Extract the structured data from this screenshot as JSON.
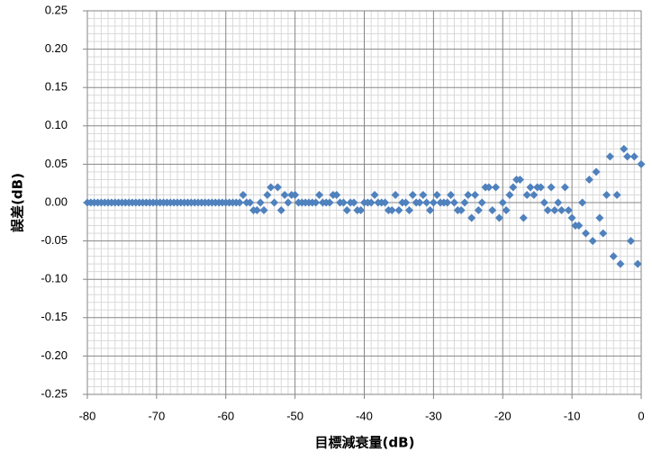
{
  "chart_data": {
    "type": "scatter",
    "x_label": "目標減衰量(dB)",
    "y_label": "誤差(dB)",
    "x": [
      -80,
      -79.5,
      -79,
      -78.5,
      -78,
      -77.5,
      -77,
      -76.5,
      -76,
      -75.5,
      -75,
      -74.5,
      -74,
      -73.5,
      -73,
      -72.5,
      -72,
      -71.5,
      -71,
      -70.5,
      -70,
      -69.5,
      -69,
      -68.5,
      -68,
      -67.5,
      -67,
      -66.5,
      -66,
      -65.5,
      -65,
      -64.5,
      -64,
      -63.5,
      -63,
      -62.5,
      -62,
      -61.5,
      -61,
      -60.5,
      -60,
      -59.5,
      -59,
      -58.5,
      -58,
      -57.5,
      -57,
      -56.5,
      -56,
      -55.5,
      -55,
      -54.5,
      -54,
      -53.5,
      -53,
      -52.5,
      -52,
      -51.5,
      -51,
      -50.5,
      -50,
      -49.5,
      -49,
      -48.5,
      -48,
      -47.5,
      -47,
      -46.5,
      -46,
      -45.5,
      -45,
      -44.5,
      -44,
      -43.5,
      -43,
      -42.5,
      -42,
      -41.5,
      -41,
      -40.5,
      -40,
      -39.5,
      -39,
      -38.5,
      -38,
      -37.5,
      -37,
      -36.5,
      -36,
      -35.5,
      -35,
      -34.5,
      -34,
      -33.5,
      -33,
      -32.5,
      -32,
      -31.5,
      -31,
      -30.5,
      -30,
      -29.5,
      -29,
      -28.5,
      -28,
      -27.5,
      -27,
      -26.5,
      -26,
      -25.5,
      -25,
      -24.5,
      -24,
      -23.5,
      -23,
      -22.5,
      -22,
      -21.5,
      -21,
      -20.5,
      -20,
      -19.5,
      -19,
      -18.5,
      -18,
      -17.5,
      -17,
      -16.5,
      -16,
      -15.5,
      -15,
      -14.5,
      -14,
      -13.5,
      -13,
      -12.5,
      -12,
      -11.5,
      -11,
      -10.5,
      -10,
      -9.5,
      -9,
      -8.5,
      -8,
      -7.5,
      -7,
      -6.5,
      -6,
      -5.5,
      -5,
      -4.5,
      -4,
      -3.5,
      -3,
      -2.5,
      -2,
      -1.5,
      -1,
      -0.5,
      0
    ],
    "series": [
      {
        "color": "#4f81bd",
        "values": [
          0,
          0,
          0,
          0,
          0,
          0,
          0,
          0,
          0,
          0,
          0,
          0,
          0,
          0,
          0,
          0,
          0,
          0,
          0,
          0,
          0,
          0,
          0,
          0,
          0,
          0,
          0,
          0,
          0,
          0,
          0,
          0,
          0,
          0,
          0,
          0,
          0,
          0,
          0,
          0,
          0,
          0,
          0,
          0,
          0,
          0.01,
          0,
          0,
          -0.01,
          -0.01,
          0,
          -0.01,
          0.01,
          0.02,
          0,
          0.02,
          -0.01,
          0.01,
          0,
          0.01,
          0.01,
          0,
          0,
          0,
          0,
          0,
          0,
          0.01,
          0,
          0,
          0,
          0.01,
          0.01,
          0,
          0,
          -0.01,
          0,
          0,
          -0.01,
          -0.01,
          0,
          0,
          0,
          0.01,
          0,
          0,
          0,
          -0.01,
          -0.01,
          0.01,
          -0.01,
          0,
          0,
          -0.01,
          0.01,
          0,
          0,
          0.01,
          0,
          -0.01,
          0,
          0.01,
          0,
          0,
          0,
          0.01,
          0,
          -0.01,
          -0.01,
          0,
          0.01,
          -0.02,
          0.01,
          -0.01,
          0,
          0.02,
          0.02,
          -0.01,
          0.02,
          -0.02,
          0,
          -0.01,
          0.01,
          0.02,
          0.03,
          0.03,
          -0.02,
          0.01,
          0.02,
          0.01,
          0.02,
          0.02,
          0,
          -0.01,
          0.02,
          -0.01,
          0,
          -0.01,
          0.02,
          -0.01,
          -0.02,
          -0.03,
          -0.03,
          0,
          -0.04,
          0.03,
          -0.05,
          0.04,
          -0.02,
          -0.04,
          0.01,
          0.06,
          -0.07,
          0.01,
          -0.08,
          0.07,
          0.06,
          -0.05,
          0.06,
          -0.08,
          0.05
        ]
      }
    ],
    "xlim": [
      -80,
      0
    ],
    "xticks": [
      -80,
      -70,
      -60,
      -50,
      -40,
      -30,
      -20,
      -10,
      0
    ],
    "ylim": [
      -0.25,
      0.25
    ],
    "yticks": [
      {
        "value": -0.25,
        "label": "-0.25"
      },
      {
        "value": -0.2,
        "label": "-0.20"
      },
      {
        "value": -0.15,
        "label": "-0.15"
      },
      {
        "value": -0.1,
        "label": "-0.10"
      },
      {
        "value": -0.05,
        "label": "-0.05"
      },
      {
        "value": 0,
        "label": "0.00"
      },
      {
        "value": 0.05,
        "label": "0.05"
      },
      {
        "value": 0.1,
        "label": "0.10"
      },
      {
        "value": 0.15,
        "label": "0.15"
      },
      {
        "value": 0.2,
        "label": "0.20"
      },
      {
        "value": 0.25,
        "label": "0.25"
      }
    ],
    "grid": true,
    "minor_grid": true
  }
}
